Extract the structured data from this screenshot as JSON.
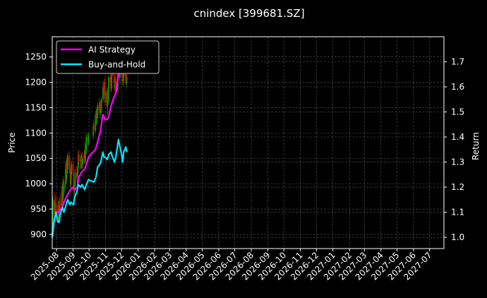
{
  "chart_data": {
    "type": "line",
    "title": "cnindex [399681.SZ]",
    "ylabel": "Price",
    "y2label": "Return",
    "background": "#000000",
    "grid": true,
    "legend_position": "top-left",
    "ylim": [
      872,
      1290
    ],
    "y2lim": [
      0.955,
      1.8
    ],
    "yticks": [
      900,
      950,
      1000,
      1050,
      1100,
      1150,
      1200,
      1250
    ],
    "y2ticks": [
      1.0,
      1.1,
      1.2,
      1.3,
      1.4,
      1.5,
      1.6,
      1.7
    ],
    "xlim": [
      "2025-07-24",
      "2027-07-28"
    ],
    "xticks": [
      "2025-08",
      "2025-09",
      "2025-10",
      "2025-11",
      "2025-12",
      "2026-01",
      "2026-02",
      "2026-03",
      "2026-04",
      "2026-05",
      "2026-06",
      "2026-07",
      "2026-08",
      "2026-09",
      "2026-10",
      "2026-11",
      "2026-12",
      "2027-01",
      "2027-02",
      "2027-03",
      "2027-04",
      "2027-05",
      "2027-06",
      "2027-07"
    ],
    "colors": {
      "up": "#00a000",
      "down": "#e00000",
      "ai": "#ff00ff",
      "bh": "#00e5ff",
      "grid": "#555555"
    },
    "candles": [
      {
        "date": "2025-07-24",
        "open": 900,
        "high": 915,
        "low": 895,
        "close": 905
      },
      {
        "date": "2025-07-25",
        "open": 905,
        "high": 975,
        "low": 900,
        "close": 968
      },
      {
        "date": "2025-07-28",
        "open": 968,
        "high": 985,
        "low": 935,
        "close": 940
      },
      {
        "date": "2025-07-29",
        "open": 940,
        "high": 970,
        "low": 930,
        "close": 962
      },
      {
        "date": "2025-07-30",
        "open": 962,
        "high": 978,
        "low": 925,
        "close": 935
      },
      {
        "date": "2025-07-31",
        "open": 935,
        "high": 960,
        "low": 928,
        "close": 950
      },
      {
        "date": "2025-08-01",
        "open": 950,
        "high": 975,
        "low": 935,
        "close": 940
      },
      {
        "date": "2025-08-04",
        "open": 940,
        "high": 968,
        "low": 930,
        "close": 958
      },
      {
        "date": "2025-08-05",
        "open": 958,
        "high": 965,
        "low": 932,
        "close": 938
      },
      {
        "date": "2025-08-06",
        "open": 938,
        "high": 958,
        "low": 930,
        "close": 950
      },
      {
        "date": "2025-08-07",
        "open": 950,
        "high": 972,
        "low": 945,
        "close": 965
      },
      {
        "date": "2025-08-08",
        "open": 965,
        "high": 980,
        "low": 948,
        "close": 955
      },
      {
        "date": "2025-08-11",
        "open": 955,
        "high": 995,
        "low": 950,
        "close": 985
      },
      {
        "date": "2025-08-12",
        "open": 985,
        "high": 998,
        "low": 960,
        "close": 968
      },
      {
        "date": "2025-08-13",
        "open": 968,
        "high": 1010,
        "low": 962,
        "close": 1002
      },
      {
        "date": "2025-08-14",
        "open": 1002,
        "high": 1015,
        "low": 980,
        "close": 985
      },
      {
        "date": "2025-08-15",
        "open": 985,
        "high": 1005,
        "low": 975,
        "close": 998
      },
      {
        "date": "2025-08-18",
        "open": 998,
        "high": 1040,
        "low": 990,
        "close": 1030
      },
      {
        "date": "2025-08-19",
        "open": 1030,
        "high": 1045,
        "low": 1000,
        "close": 1008
      },
      {
        "date": "2025-08-20",
        "open": 1008,
        "high": 1050,
        "low": 1002,
        "close": 1045
      },
      {
        "date": "2025-08-21",
        "open": 1045,
        "high": 1058,
        "low": 1022,
        "close": 1028
      },
      {
        "date": "2025-08-22",
        "open": 1028,
        "high": 1062,
        "low": 1020,
        "close": 1055
      },
      {
        "date": "2025-08-25",
        "open": 1055,
        "high": 1065,
        "low": 1030,
        "close": 1035
      },
      {
        "date": "2025-08-26",
        "open": 1035,
        "high": 1048,
        "low": 1015,
        "close": 1020
      },
      {
        "date": "2025-08-27",
        "open": 1020,
        "high": 1030,
        "low": 992,
        "close": 998
      },
      {
        "date": "2025-08-28",
        "open": 998,
        "high": 1025,
        "low": 990,
        "close": 1018
      },
      {
        "date": "2025-08-29",
        "open": 1018,
        "high": 1045,
        "low": 1010,
        "close": 1040
      },
      {
        "date": "2025-09-01",
        "open": 1040,
        "high": 1050,
        "low": 1020,
        "close": 1025
      },
      {
        "date": "2025-09-02",
        "open": 1025,
        "high": 1035,
        "low": 985,
        "close": 990
      },
      {
        "date": "2025-09-03",
        "open": 990,
        "high": 1002,
        "low": 975,
        "close": 985
      },
      {
        "date": "2025-09-04",
        "open": 985,
        "high": 1008,
        "low": 978,
        "close": 1000
      },
      {
        "date": "2025-09-05",
        "open": 1000,
        "high": 1030,
        "low": 995,
        "close": 1022
      },
      {
        "date": "2025-09-08",
        "open": 1022,
        "high": 1035,
        "low": 1008,
        "close": 1012
      },
      {
        "date": "2025-09-09",
        "open": 1012,
        "high": 1028,
        "low": 1000,
        "close": 1020
      },
      {
        "date": "2025-09-10",
        "open": 1020,
        "high": 1042,
        "low": 1015,
        "close": 1035
      },
      {
        "date": "2025-09-11",
        "open": 1035,
        "high": 1065,
        "low": 1030,
        "close": 1058
      },
      {
        "date": "2025-09-12",
        "open": 1058,
        "high": 1068,
        "low": 1040,
        "close": 1045
      },
      {
        "date": "2025-09-15",
        "open": 1045,
        "high": 1055,
        "low": 1030,
        "close": 1048
      },
      {
        "date": "2025-09-16",
        "open": 1048,
        "high": 1058,
        "low": 1028,
        "close": 1035
      },
      {
        "date": "2025-09-17",
        "open": 1035,
        "high": 1060,
        "low": 1030,
        "close": 1055
      },
      {
        "date": "2025-09-18",
        "open": 1055,
        "high": 1062,
        "low": 1030,
        "close": 1038
      },
      {
        "date": "2025-09-19",
        "open": 1038,
        "high": 1052,
        "low": 1030,
        "close": 1048
      },
      {
        "date": "2025-09-22",
        "open": 1048,
        "high": 1065,
        "low": 1040,
        "close": 1060
      },
      {
        "date": "2025-09-23",
        "open": 1060,
        "high": 1068,
        "low": 1040,
        "close": 1045
      },
      {
        "date": "2025-09-24",
        "open": 1045,
        "high": 1082,
        "low": 1040,
        "close": 1078
      },
      {
        "date": "2025-09-25",
        "open": 1078,
        "high": 1090,
        "low": 1060,
        "close": 1065
      },
      {
        "date": "2025-09-26",
        "open": 1065,
        "high": 1098,
        "low": 1058,
        "close": 1092
      },
      {
        "date": "2025-09-29",
        "open": 1092,
        "high": 1100,
        "low": 1075,
        "close": 1080
      },
      {
        "date": "2025-09-30",
        "open": 1080,
        "high": 1100,
        "low": 1075,
        "close": 1095
      },
      {
        "date": "2025-10-09",
        "open": 1095,
        "high": 1120,
        "low": 1088,
        "close": 1115
      },
      {
        "date": "2025-10-10",
        "open": 1115,
        "high": 1125,
        "low": 1100,
        "close": 1105
      },
      {
        "date": "2025-10-13",
        "open": 1105,
        "high": 1140,
        "low": 1100,
        "close": 1135
      },
      {
        "date": "2025-10-14",
        "open": 1135,
        "high": 1145,
        "low": 1115,
        "close": 1120
      },
      {
        "date": "2025-10-15",
        "open": 1120,
        "high": 1148,
        "low": 1115,
        "close": 1142
      },
      {
        "date": "2025-10-16",
        "open": 1142,
        "high": 1150,
        "low": 1125,
        "close": 1130
      },
      {
        "date": "2025-10-17",
        "open": 1130,
        "high": 1160,
        "low": 1128,
        "close": 1155
      },
      {
        "date": "2025-10-20",
        "open": 1155,
        "high": 1168,
        "low": 1140,
        "close": 1145
      },
      {
        "date": "2025-10-21",
        "open": 1145,
        "high": 1162,
        "low": 1138,
        "close": 1158
      },
      {
        "date": "2025-10-22",
        "open": 1158,
        "high": 1165,
        "low": 1135,
        "close": 1140
      },
      {
        "date": "2025-10-23",
        "open": 1140,
        "high": 1150,
        "low": 1128,
        "close": 1145
      },
      {
        "date": "2025-10-24",
        "open": 1145,
        "high": 1170,
        "low": 1140,
        "close": 1165
      },
      {
        "date": "2025-10-27",
        "open": 1165,
        "high": 1192,
        "low": 1160,
        "close": 1188
      },
      {
        "date": "2025-10-28",
        "open": 1188,
        "high": 1198,
        "low": 1170,
        "close": 1175
      },
      {
        "date": "2025-10-29",
        "open": 1175,
        "high": 1205,
        "low": 1168,
        "close": 1200
      },
      {
        "date": "2025-10-30",
        "open": 1200,
        "high": 1210,
        "low": 1178,
        "close": 1182
      },
      {
        "date": "2025-10-31",
        "open": 1182,
        "high": 1190,
        "low": 1155,
        "close": 1160
      },
      {
        "date": "2025-11-03",
        "open": 1160,
        "high": 1185,
        "low": 1152,
        "close": 1180
      },
      {
        "date": "2025-11-04",
        "open": 1180,
        "high": 1188,
        "low": 1150,
        "close": 1155
      },
      {
        "date": "2025-11-05",
        "open": 1155,
        "high": 1165,
        "low": 1135,
        "close": 1162
      },
      {
        "date": "2025-11-06",
        "open": 1162,
        "high": 1195,
        "low": 1158,
        "close": 1190
      },
      {
        "date": "2025-11-07",
        "open": 1190,
        "high": 1215,
        "low": 1185,
        "close": 1210
      },
      {
        "date": "2025-11-10",
        "open": 1210,
        "high": 1225,
        "low": 1195,
        "close": 1200
      },
      {
        "date": "2025-11-11",
        "open": 1200,
        "high": 1212,
        "low": 1180,
        "close": 1188
      },
      {
        "date": "2025-11-12",
        "open": 1188,
        "high": 1218,
        "low": 1182,
        "close": 1212
      },
      {
        "date": "2025-11-13",
        "open": 1212,
        "high": 1238,
        "low": 1205,
        "close": 1232
      },
      {
        "date": "2025-11-14",
        "open": 1232,
        "high": 1245,
        "low": 1215,
        "close": 1220
      },
      {
        "date": "2025-11-17",
        "open": 1220,
        "high": 1232,
        "low": 1195,
        "close": 1200
      },
      {
        "date": "2025-11-18",
        "open": 1200,
        "high": 1210,
        "low": 1180,
        "close": 1188
      },
      {
        "date": "2025-11-19",
        "open": 1188,
        "high": 1210,
        "low": 1182,
        "close": 1205
      },
      {
        "date": "2025-11-20",
        "open": 1205,
        "high": 1215,
        "low": 1185,
        "close": 1192
      },
      {
        "date": "2025-11-21",
        "open": 1192,
        "high": 1200,
        "low": 1175,
        "close": 1185
      },
      {
        "date": "2025-11-24",
        "open": 1185,
        "high": 1230,
        "low": 1180,
        "close": 1225
      },
      {
        "date": "2025-11-25",
        "open": 1225,
        "high": 1258,
        "low": 1220,
        "close": 1250
      },
      {
        "date": "2025-11-26",
        "open": 1250,
        "high": 1262,
        "low": 1228,
        "close": 1232
      },
      {
        "date": "2025-11-27",
        "open": 1232,
        "high": 1245,
        "low": 1205,
        "close": 1210
      },
      {
        "date": "2025-11-28",
        "open": 1210,
        "high": 1222,
        "low": 1195,
        "close": 1215
      },
      {
        "date": "2025-12-01",
        "open": 1215,
        "high": 1240,
        "low": 1210,
        "close": 1235
      },
      {
        "date": "2025-12-02",
        "open": 1235,
        "high": 1248,
        "low": 1220,
        "close": 1225
      },
      {
        "date": "2025-12-03",
        "open": 1225,
        "high": 1232,
        "low": 1195,
        "close": 1200
      },
      {
        "date": "2025-12-04",
        "open": 1200,
        "high": 1215,
        "low": 1192,
        "close": 1210
      },
      {
        "date": "2025-12-05",
        "open": 1210,
        "high": 1238,
        "low": 1205,
        "close": 1232
      },
      {
        "date": "2025-12-08",
        "open": 1232,
        "high": 1240,
        "low": 1210,
        "close": 1215
      },
      {
        "date": "2025-12-09",
        "open": 1215,
        "high": 1228,
        "low": 1195,
        "close": 1198
      },
      {
        "date": "2025-12-10",
        "open": 1198,
        "high": 1215,
        "low": 1188,
        "close": 1210
      },
      {
        "date": "2025-12-11",
        "open": 1210,
        "high": 1225,
        "low": 1200,
        "close": 1205
      }
    ],
    "series": [
      {
        "name": "AI Strategy",
        "axis": "right",
        "x": [
          "2025-07-24",
          "2025-07-29",
          "2025-08-01",
          "2025-08-05",
          "2025-08-08",
          "2025-08-12",
          "2025-08-15",
          "2025-08-19",
          "2025-08-22",
          "2025-08-27",
          "2025-09-01",
          "2025-09-04",
          "2025-09-09",
          "2025-09-12",
          "2025-09-17",
          "2025-09-22",
          "2025-09-26",
          "2025-09-30",
          "2025-10-13",
          "2025-10-17",
          "2025-10-22",
          "2025-10-27",
          "2025-10-31",
          "2025-11-04",
          "2025-11-07",
          "2025-11-12",
          "2025-11-17",
          "2025-11-21",
          "2025-11-25",
          "2025-11-28"
        ],
        "values": [
          1.0,
          1.08,
          1.1,
          1.1,
          1.11,
          1.12,
          1.14,
          1.16,
          1.17,
          1.19,
          1.2,
          1.19,
          1.2,
          1.24,
          1.26,
          1.27,
          1.29,
          1.32,
          1.35,
          1.38,
          1.42,
          1.49,
          1.47,
          1.47,
          1.48,
          1.53,
          1.56,
          1.58,
          1.65,
          1.71
        ]
      },
      {
        "name": "Buy-and-Hold",
        "axis": "right",
        "x": [
          "2025-07-24",
          "2025-07-28",
          "2025-07-31",
          "2025-08-04",
          "2025-08-06",
          "2025-08-08",
          "2025-08-12",
          "2025-08-15",
          "2025-08-19",
          "2025-08-22",
          "2025-08-26",
          "2025-08-28",
          "2025-09-02",
          "2025-09-04",
          "2025-09-08",
          "2025-09-11",
          "2025-09-15",
          "2025-09-18",
          "2025-09-23",
          "2025-09-26",
          "2025-09-30",
          "2025-10-10",
          "2025-10-14",
          "2025-10-17",
          "2025-10-21",
          "2025-10-23",
          "2025-10-27",
          "2025-10-29",
          "2025-10-31",
          "2025-11-04",
          "2025-11-07",
          "2025-11-11",
          "2025-11-14",
          "2025-11-18",
          "2025-11-21",
          "2025-11-25",
          "2025-11-27",
          "2025-12-01",
          "2025-12-03",
          "2025-12-05",
          "2025-12-09",
          "2025-12-11"
        ],
        "values": [
          1.0,
          1.07,
          1.1,
          1.06,
          1.06,
          1.09,
          1.12,
          1.1,
          1.13,
          1.15,
          1.13,
          1.14,
          1.13,
          1.16,
          1.18,
          1.21,
          1.2,
          1.21,
          1.19,
          1.21,
          1.23,
          1.22,
          1.24,
          1.28,
          1.29,
          1.3,
          1.34,
          1.32,
          1.32,
          1.31,
          1.33,
          1.34,
          1.32,
          1.3,
          1.33,
          1.39,
          1.37,
          1.33,
          1.3,
          1.34,
          1.36,
          1.34
        ]
      }
    ]
  }
}
